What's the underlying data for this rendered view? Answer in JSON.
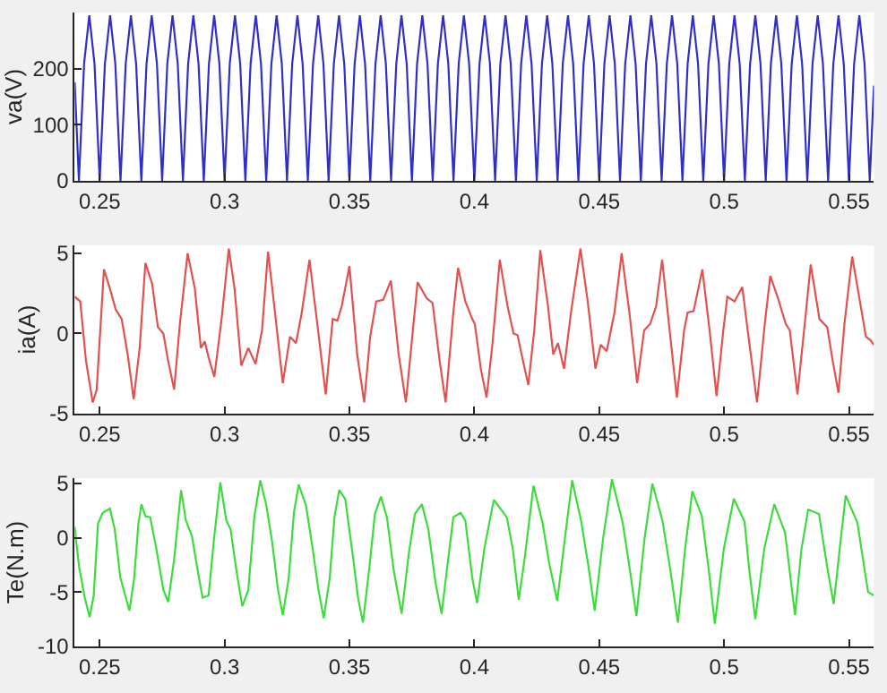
{
  "chart_data": [
    {
      "type": "line",
      "ylabel": "va(V)",
      "xlim": [
        0.24,
        0.56
      ],
      "xticks": [
        0.25,
        0.3,
        0.35,
        0.4,
        0.45,
        0.5,
        0.55
      ],
      "ylim": [
        0,
        300
      ],
      "yticks": [
        0,
        100,
        200
      ],
      "series": [
        {
          "color": "#3030c8",
          "x": [
            0.24,
            0.24167,
            0.24375,
            0.24583,
            0.24792,
            0.25,
            0.25208,
            0.25417,
            0.25625,
            0.25833,
            0.26042,
            0.2625,
            0.26458,
            0.26667,
            0.26875,
            0.27083,
            0.27292,
            0.275,
            0.27708,
            0.27917,
            0.28125,
            0.28333,
            0.28542,
            0.2875,
            0.28958,
            0.29167,
            0.29375,
            0.29583,
            0.29792,
            0.3,
            0.30208,
            0.30417,
            0.30625,
            0.30833,
            0.31042,
            0.3125,
            0.31458,
            0.31667,
            0.31875,
            0.32083,
            0.32292,
            0.325,
            0.32708,
            0.32917,
            0.33125,
            0.33333,
            0.33542,
            0.3375,
            0.33958,
            0.34167,
            0.34375,
            0.34583,
            0.34792,
            0.35,
            0.35208,
            0.35417,
            0.35625,
            0.35833,
            0.36042,
            0.3625,
            0.36458,
            0.36667,
            0.36875,
            0.37083,
            0.37292,
            0.375,
            0.37708,
            0.37917,
            0.38125,
            0.38333,
            0.38542,
            0.3875,
            0.38958,
            0.39167,
            0.39375,
            0.39583,
            0.39792,
            0.4,
            0.40208,
            0.40417,
            0.40625,
            0.40833,
            0.41042,
            0.4125,
            0.41458,
            0.41667,
            0.41875,
            0.42083,
            0.42292,
            0.425,
            0.42708,
            0.42917,
            0.43125,
            0.43333,
            0.43542,
            0.4375,
            0.43958,
            0.44167,
            0.44375,
            0.44583,
            0.44792,
            0.45,
            0.45208,
            0.45417,
            0.45625,
            0.45833,
            0.46042,
            0.4625,
            0.46458,
            0.46667,
            0.46875,
            0.47083,
            0.47292,
            0.475,
            0.47708,
            0.47917,
            0.48125,
            0.48333,
            0.48542,
            0.4875,
            0.48958,
            0.49167,
            0.49375,
            0.49583,
            0.49792,
            0.5,
            0.50208,
            0.50417,
            0.50625,
            0.50833,
            0.51042,
            0.5125,
            0.51458,
            0.51667,
            0.51875,
            0.52083,
            0.52292,
            0.525,
            0.52708,
            0.52917,
            0.53125,
            0.53333,
            0.53542,
            0.5375,
            0.53958,
            0.54167,
            0.54375,
            0.54583,
            0.54792,
            0.55,
            0.55208,
            0.55417,
            0.55625,
            0.55833,
            0.56
          ],
          "values": [
            176,
            0,
            209,
            295,
            209,
            0,
            209,
            295,
            209,
            0,
            209,
            295,
            209,
            0,
            209,
            295,
            209,
            0,
            209,
            295,
            209,
            0,
            209,
            295,
            209,
            0,
            209,
            295,
            209,
            0,
            209,
            295,
            209,
            0,
            209,
            295,
            209,
            0,
            209,
            295,
            209,
            0,
            209,
            295,
            209,
            0,
            209,
            295,
            209,
            0,
            209,
            295,
            209,
            0,
            209,
            295,
            209,
            0,
            209,
            295,
            209,
            0,
            209,
            295,
            209,
            0,
            209,
            295,
            209,
            0,
            209,
            295,
            209,
            0,
            209,
            295,
            209,
            0,
            209,
            295,
            209,
            0,
            209,
            295,
            209,
            0,
            209,
            295,
            209,
            0,
            209,
            295,
            209,
            0,
            209,
            295,
            209,
            0,
            209,
            295,
            209,
            0,
            209,
            295,
            209,
            0,
            209,
            295,
            209,
            0,
            209,
            295,
            209,
            0,
            209,
            295,
            209,
            0,
            209,
            295,
            209,
            0,
            209,
            295,
            209,
            0,
            209,
            295,
            209,
            0,
            209,
            295,
            209,
            0,
            209,
            295,
            209,
            0,
            209,
            295,
            209,
            0,
            209,
            295,
            209,
            0,
            209,
            295,
            209,
            0,
            209,
            295,
            209,
            0,
            170
          ]
        }
      ]
    },
    {
      "type": "line",
      "ylabel": "ia(A)",
      "xlim": [
        0.24,
        0.56
      ],
      "xticks": [
        0.25,
        0.3,
        0.35,
        0.4,
        0.45,
        0.5,
        0.55
      ],
      "ylim": [
        -5,
        5.5
      ],
      "yticks": [
        -5,
        0,
        5
      ],
      "series": [
        {
          "color": "#e0524f",
          "x": [
            0.24,
            0.2422,
            0.2445,
            0.2472,
            0.2488,
            0.2517,
            0.2541,
            0.2564,
            0.2588,
            0.2612,
            0.2636,
            0.266,
            0.2683,
            0.271,
            0.2733,
            0.2755,
            0.2774,
            0.2798,
            0.2821,
            0.2852,
            0.2881,
            0.2905,
            0.2921,
            0.2936,
            0.2959,
            0.2988,
            0.3017,
            0.304,
            0.3067,
            0.3095,
            0.3124,
            0.315,
            0.3174,
            0.3202,
            0.3233,
            0.3262,
            0.3286,
            0.3309,
            0.334,
            0.3369,
            0.3405,
            0.3433,
            0.3452,
            0.3469,
            0.35,
            0.3531,
            0.3559,
            0.3583,
            0.3607,
            0.3635,
            0.3666,
            0.3697,
            0.3726,
            0.3754,
            0.3773,
            0.3809,
            0.3833,
            0.3861,
            0.3885,
            0.3916,
            0.3935,
            0.3964,
            0.3992,
            0.4002,
            0.4026,
            0.4049,
            0.4073,
            0.4102,
            0.4133,
            0.4157,
            0.4173,
            0.4192,
            0.4216,
            0.424,
            0.4264,
            0.4295,
            0.4316,
            0.4335,
            0.4359,
            0.4387,
            0.4425,
            0.4454,
            0.4485,
            0.4506,
            0.453,
            0.4561,
            0.459,
            0.4621,
            0.4652,
            0.468,
            0.4704,
            0.4728,
            0.4752,
            0.4782,
            0.4811,
            0.484,
            0.4854,
            0.4878,
            0.4913,
            0.4942,
            0.497,
            0.4997,
            0.5013,
            0.5042,
            0.5073,
            0.5101,
            0.5132,
            0.5163,
            0.5185,
            0.5216,
            0.5247,
            0.5263,
            0.5294,
            0.5323,
            0.5347,
            0.5382,
            0.5413,
            0.5435,
            0.5458,
            0.5482,
            0.5513,
            0.5544,
            0.5568,
            0.5585,
            0.56
          ],
          "values": [
            2.3,
            2.0,
            -1.7,
            -4.3,
            -3.5,
            4.0,
            2.8,
            1.5,
            0.9,
            -1.3,
            -4.1,
            -0.9,
            4.4,
            3.1,
            0.4,
            0.0,
            -1.7,
            -3.5,
            0.6,
            5.0,
            2.8,
            -0.9,
            -0.5,
            -1.5,
            -2.7,
            0.9,
            5.3,
            2.8,
            -2.0,
            -0.9,
            -1.9,
            0.2,
            5.1,
            1.3,
            -3.1,
            -0.2,
            -0.6,
            1.3,
            4.6,
            0.9,
            -3.8,
            0.9,
            0.8,
            1.7,
            4.2,
            -1.3,
            -4.3,
            -0.2,
            2.0,
            2.1,
            3.3,
            -1.3,
            -4.3,
            0.2,
            3.2,
            2.2,
            1.9,
            -1.7,
            -4.3,
            1.3,
            4.1,
            2.0,
            0.9,
            0.6,
            -2.2,
            -4.0,
            -0.6,
            4.6,
            1.7,
            0.0,
            -0.1,
            -1.5,
            -3.2,
            0.2,
            5.2,
            1.7,
            -1.3,
            -0.6,
            -2.2,
            1.3,
            5.3,
            2.0,
            -2.2,
            -0.7,
            -1.1,
            1.3,
            5.0,
            1.3,
            -3.1,
            0.2,
            0.6,
            1.7,
            4.6,
            0.2,
            -4.0,
            0.2,
            1.3,
            1.4,
            4.0,
            0.2,
            -3.9,
            0.2,
            2.3,
            2.0,
            2.9,
            -0.6,
            -4.3,
            0.6,
            3.6,
            2.2,
            0.6,
            0.2,
            -3.8,
            0.6,
            4.3,
            0.9,
            0.4,
            -1.7,
            -3.7,
            0.6,
            4.8,
            2.0,
            -0.2,
            -0.4,
            -0.7
          ]
        }
      ]
    },
    {
      "type": "line",
      "ylabel": "Te(N.m)",
      "xlim": [
        0.24,
        0.56
      ],
      "xticks": [
        0.25,
        0.3,
        0.35,
        0.4,
        0.45,
        0.5,
        0.55
      ],
      "ylim": [
        -10,
        5.5
      ],
      "yticks": [
        -10,
        -5,
        0,
        5
      ],
      "series": [
        {
          "color": "#3ddc3d",
          "x": [
            0.24,
            0.2417,
            0.2441,
            0.246,
            0.2476,
            0.2493,
            0.2512,
            0.2541,
            0.256,
            0.2583,
            0.2619,
            0.2638,
            0.2655,
            0.2667,
            0.2683,
            0.2702,
            0.2726,
            0.2755,
            0.2774,
            0.2798,
            0.2826,
            0.2845,
            0.2869,
            0.2893,
            0.2912,
            0.2936,
            0.2959,
            0.2983,
            0.3007,
            0.3024,
            0.3048,
            0.3071,
            0.3095,
            0.3119,
            0.3143,
            0.3167,
            0.319,
            0.3214,
            0.3233,
            0.3257,
            0.3278,
            0.3297,
            0.3326,
            0.3352,
            0.3376,
            0.3397,
            0.3421,
            0.344,
            0.3459,
            0.3483,
            0.3512,
            0.3535,
            0.3554,
            0.3578,
            0.3602,
            0.3626,
            0.365,
            0.3678,
            0.3709,
            0.3738,
            0.3762,
            0.379,
            0.3816,
            0.3845,
            0.3869,
            0.3892,
            0.3916,
            0.3945,
            0.3964,
            0.3992,
            0.4011,
            0.404,
            0.4078,
            0.413,
            0.4154,
            0.4178,
            0.4201,
            0.4237,
            0.4273,
            0.4301,
            0.4332,
            0.4363,
            0.4392,
            0.4428,
            0.4456,
            0.4482,
            0.4516,
            0.4551,
            0.4594,
            0.462,
            0.4649,
            0.4682,
            0.4713,
            0.4754,
            0.4785,
            0.4815,
            0.4844,
            0.4873,
            0.4911,
            0.4939,
            0.4963,
            0.4999,
            0.5039,
            0.5082,
            0.5101,
            0.5125,
            0.5161,
            0.5201,
            0.5244,
            0.5284,
            0.531,
            0.5337,
            0.538,
            0.5415,
            0.5439,
            0.5463,
            0.5487,
            0.5534,
            0.5563,
            0.5577,
            0.56
          ],
          "values": [
            1.0,
            -2.6,
            -5.6,
            -7.3,
            -5.3,
            1.3,
            2.3,
            2.7,
            0.8,
            -3.7,
            -6.7,
            -3.7,
            1.3,
            3.1,
            2.0,
            1.9,
            -0.9,
            -4.8,
            -5.9,
            -2.0,
            4.4,
            1.6,
            0.2,
            -3.1,
            -5.5,
            -5.3,
            0.2,
            5.1,
            1.6,
            0.8,
            -3.1,
            -6.3,
            -4.8,
            1.9,
            5.3,
            3.0,
            -0.3,
            -4.8,
            -7.1,
            -3.7,
            2.4,
            4.9,
            3.0,
            -0.9,
            -4.8,
            -7.4,
            -3.7,
            1.9,
            4.4,
            3.6,
            -1.4,
            -5.6,
            -7.8,
            -3.1,
            2.2,
            3.8,
            1.9,
            -3.1,
            -7.0,
            -1.4,
            2.2,
            3.1,
            0.8,
            -4.2,
            -7.0,
            -2.6,
            1.9,
            2.3,
            1.6,
            -3.7,
            -6.0,
            -1.0,
            3.5,
            1.9,
            -1.0,
            -5.7,
            -2.0,
            4.8,
            1.4,
            -2.5,
            -5.8,
            0.0,
            5.3,
            1.5,
            -2.5,
            -6.7,
            0.0,
            5.4,
            1.4,
            -2.5,
            -7.2,
            0.0,
            5.0,
            1.5,
            -3.0,
            -7.8,
            -1.0,
            4.3,
            2.0,
            -3.0,
            -7.9,
            -1.0,
            3.6,
            1.5,
            -3.0,
            -7.5,
            -1.0,
            3.1,
            0.5,
            -7.1,
            -1.0,
            2.6,
            2.2,
            -3.0,
            -6.1,
            -1.0,
            3.9,
            1.4,
            -3.0,
            -5.0,
            -5.3
          ]
        }
      ]
    }
  ]
}
